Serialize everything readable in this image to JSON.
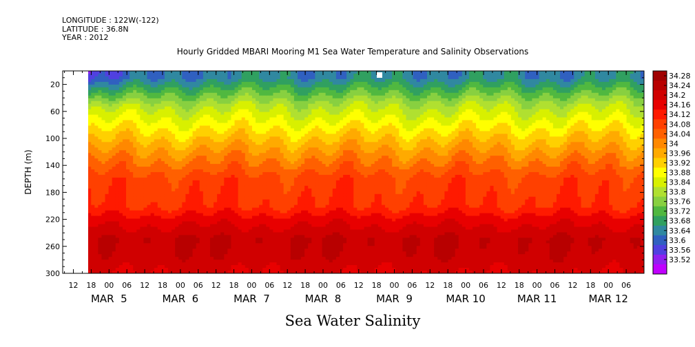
{
  "meta": {
    "longitude": "LONGITUDE : 122W(-122)",
    "latitude": "LATITUDE : 36.8N",
    "year": "YEAR : 2012"
  },
  "chart_data": {
    "type": "heatmap",
    "title": "Hourly Gridded MBARI Mooring M1 Sea Water Temperature and Salinity Observations",
    "xlabel": "Sea Water Salinity",
    "ylabel": "DEPTH (m)",
    "ylim": [
      300,
      0
    ],
    "y_ticks": [
      "20",
      "60",
      "100",
      "140",
      "180",
      "220",
      "260",
      "300"
    ],
    "y_tick_values": [
      20,
      60,
      100,
      140,
      180,
      220,
      260,
      300
    ],
    "x_hour_ticks": [
      "12",
      "18",
      "00",
      "06",
      "12",
      "18",
      "00",
      "06",
      "12",
      "18",
      "00",
      "06",
      "12",
      "18",
      "00",
      "06",
      "12",
      "18",
      "00",
      "06",
      "12",
      "18",
      "00",
      "06",
      "12",
      "18",
      "00",
      "06",
      "12",
      "18",
      "00",
      "06"
    ],
    "x_day_labels": [
      "MAR  5",
      "MAR  6",
      "MAR  7",
      "MAR  8",
      "MAR  9",
      "MAR 10",
      "MAR 11",
      "MAR 12"
    ],
    "x_day_positions": [
      5,
      6,
      7,
      8,
      9,
      10,
      11,
      12
    ],
    "xlim": [
      4.35,
      12.5
    ],
    "data_start": 4.65,
    "colorbar_labels": [
      "34.28",
      "34.24",
      "34.2",
      "34.16",
      "34.12",
      "34.08",
      "34.04",
      "34",
      "33.96",
      "33.92",
      "33.88",
      "33.84",
      "33.8",
      "33.76",
      "33.72",
      "33.68",
      "33.64",
      "33.6",
      "33.56",
      "33.52"
    ],
    "colorbar_colors": [
      "#a00000",
      "#b80000",
      "#d00000",
      "#e80000",
      "#ff1a00",
      "#ff4000",
      "#ff6000",
      "#ff8800",
      "#ffaa00",
      "#ffd000",
      "#ffff00",
      "#d8f000",
      "#b0e030",
      "#88d040",
      "#50b840",
      "#30a060",
      "#3088a0",
      "#3060c0",
      "#5040e0",
      "#9020f0",
      "#c000ff"
    ],
    "depth_profile": [
      [
        10,
        33.66
      ],
      [
        30,
        33.74
      ],
      [
        50,
        33.82
      ],
      [
        80,
        33.9
      ],
      [
        110,
        33.98
      ],
      [
        130,
        34.03
      ],
      [
        160,
        34.1
      ],
      [
        200,
        34.12
      ],
      [
        220,
        34.18
      ],
      [
        250,
        34.24
      ],
      [
        275,
        34.23
      ],
      [
        300,
        34.2
      ]
    ]
  }
}
